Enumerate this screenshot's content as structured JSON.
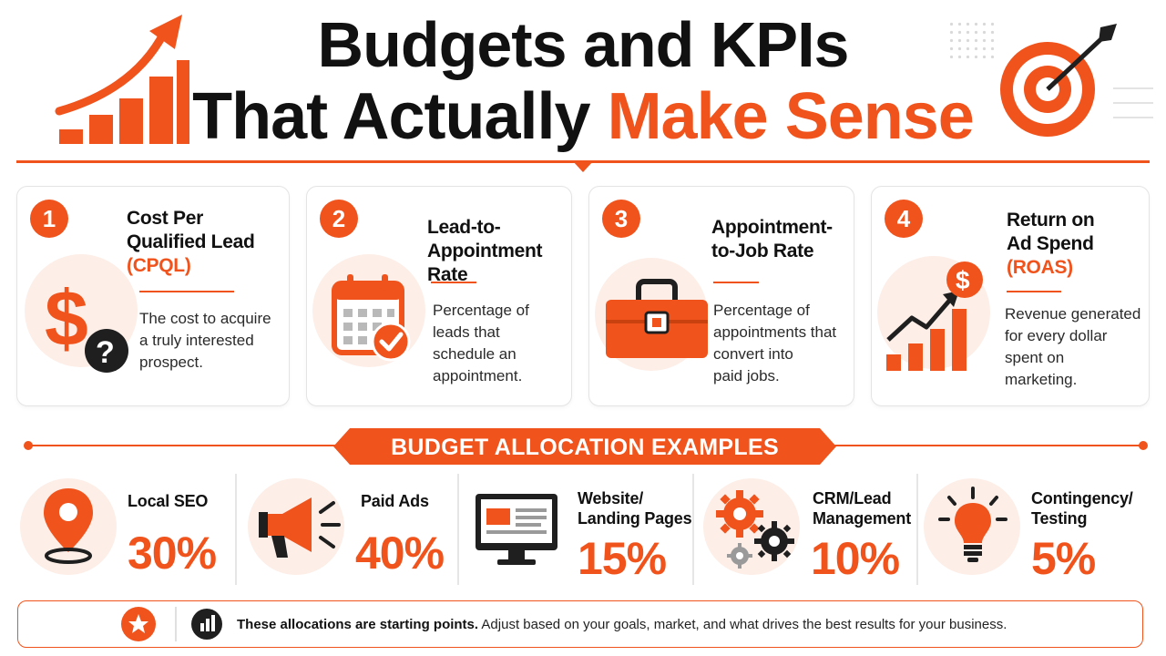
{
  "header": {
    "title_line1": "Budgets and KPIs",
    "title_line2_plain": "That Actually ",
    "title_line2_highlight": "Make Sense"
  },
  "kpis": [
    {
      "number": "1",
      "title": "Cost Per Qualified Lead",
      "title_line1": "Cost Per",
      "title_line2": "Qualified Lead",
      "abbr": "(CPQL)",
      "description_lines": [
        "The cost to acquire",
        "a truly interested",
        "prospect."
      ],
      "icon": "dollar-question-icon"
    },
    {
      "number": "2",
      "title_line1": "Lead-to-",
      "title_line2": "Appointment Rate",
      "description_lines": [
        "Percentage of",
        "leads that",
        "schedule an",
        "appointment."
      ],
      "icon": "calendar-check-icon"
    },
    {
      "number": "3",
      "title_line1": "Appointment-",
      "title_line2": "to-Job Rate",
      "description_lines": [
        "Percentage of",
        "appointments that",
        "convert into",
        "paid jobs."
      ],
      "icon": "toolbox-icon"
    },
    {
      "number": "4",
      "title_line1": "Return on",
      "title_line2": "Ad Spend",
      "abbr": "(ROAS)",
      "description_lines": [
        "Revenue generated",
        "for every dollar",
        "spent on",
        "marketing."
      ],
      "icon": "growth-chart-dollar-icon"
    }
  ],
  "budget": {
    "banner": "BUDGET ALLOCATION EXAMPLES",
    "items": [
      {
        "label_line1": "Local SEO",
        "label_line2": "",
        "percent_text": "30%",
        "percent": 30,
        "icon": "map-pin-icon"
      },
      {
        "label_line1": "Paid Ads",
        "label_line2": "",
        "percent_text": "40%",
        "percent": 40,
        "icon": "megaphone-icon"
      },
      {
        "label_line1": "Website/",
        "label_line2": "Landing Pages",
        "percent_text": "15%",
        "percent": 15,
        "icon": "monitor-icon"
      },
      {
        "label_line1": "CRM/Lead",
        "label_line2": "Management",
        "percent_text": "10%",
        "percent": 10,
        "icon": "gears-icon"
      },
      {
        "label_line1": "Contingency/",
        "label_line2": "Testing",
        "percent_text": "5%",
        "percent": 5,
        "icon": "lightbulb-icon"
      }
    ]
  },
  "footer": {
    "bold": "These allocations are starting points.",
    "rest": " Adjust based on your goals, market, and what drives the best results for your business."
  },
  "colors": {
    "accent": "#f0531c",
    "accent_light": "#fdeee7",
    "dark": "#111111"
  }
}
